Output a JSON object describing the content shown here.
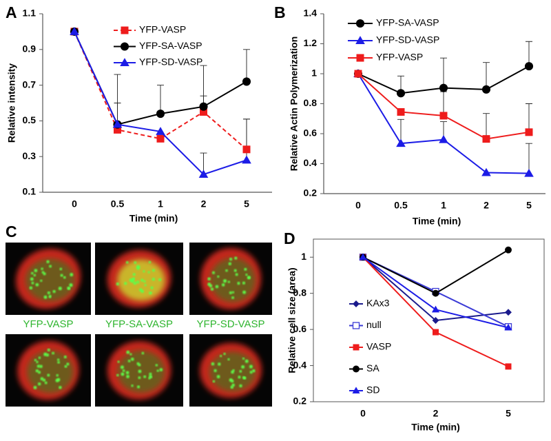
{
  "chart_data": [
    {
      "type": "line",
      "panel": "A",
      "xlabel": "Time (min)",
      "ylabel": "Relative intensity",
      "categories": [
        "0",
        "0.5",
        "1",
        "2",
        "5"
      ],
      "ylim": [
        0.1,
        1.1
      ],
      "yticks": [
        0.1,
        0.3,
        0.5,
        0.7,
        0.9,
        1.1
      ],
      "legend": "upper-center",
      "frame": false,
      "series": [
        {
          "name": "YFP-VASP",
          "color": "#ee1c1c",
          "marker": "square",
          "dashed": true,
          "values": [
            1.0,
            0.45,
            0.4,
            0.55,
            0.34
          ],
          "errors": [
            null,
            null,
            null,
            0.09,
            0.17
          ]
        },
        {
          "name": "YFP-SA-VASP",
          "color": "#000000",
          "marker": "circle",
          "dashed": false,
          "values": [
            1.0,
            0.48,
            0.54,
            0.58,
            0.72
          ],
          "errors": [
            null,
            0.28,
            0.16,
            0.23,
            0.18
          ]
        },
        {
          "name": "YFP-SD-VASP",
          "color": "#1c1ce6",
          "marker": "triangle",
          "dashed": false,
          "values": [
            1.0,
            0.48,
            0.44,
            0.2,
            0.28
          ],
          "errors": [
            null,
            0.12,
            null,
            0.12,
            0.23
          ]
        }
      ]
    },
    {
      "type": "line",
      "panel": "B",
      "xlabel": "Time (min)",
      "ylabel": "Relative Actin Polymerization",
      "categories": [
        "0",
        "0.5",
        "1",
        "2",
        "5"
      ],
      "ylim": [
        0.2,
        1.4
      ],
      "yticks": [
        0.2,
        0.4,
        0.6,
        0.8,
        1,
        1.2,
        1.4
      ],
      "legend": "upper-left",
      "frame": false,
      "series": [
        {
          "name": "YFP-SA-VASP",
          "color": "#000000",
          "marker": "circle",
          "dashed": false,
          "values": [
            1.0,
            0.87,
            0.905,
            0.895,
            1.05
          ],
          "errors": [
            null,
            0.115,
            0.2,
            0.18,
            0.165
          ]
        },
        {
          "name": "YFP-SD-VASP",
          "color": "#1c1ce6",
          "marker": "triangle",
          "dashed": false,
          "values": [
            1.0,
            0.535,
            0.56,
            0.34,
            0.335
          ],
          "errors": [
            null,
            0.16,
            0.12,
            null,
            0.2
          ]
        },
        {
          "name": "YFP-VASP",
          "color": "#ee1c1c",
          "marker": "square",
          "dashed": false,
          "values": [
            1.0,
            0.745,
            0.72,
            0.565,
            0.61
          ],
          "errors": [
            null,
            null,
            0.16,
            0.17,
            0.19
          ]
        }
      ]
    },
    {
      "type": "line",
      "panel": "D",
      "xlabel": "Time (min)",
      "ylabel": "Relative cell size (area)",
      "categories": [
        "0",
        "2",
        "5"
      ],
      "ylim": [
        0.2,
        1.1
      ],
      "yticks": [
        0.2,
        0.4,
        0.6,
        0.8,
        1
      ],
      "legend": "center-left",
      "frame": true,
      "series": [
        {
          "name": "KAx3",
          "color": "#1a1a8c",
          "marker": "diamond",
          "dashed": false,
          "values": [
            1.0,
            0.65,
            0.695
          ]
        },
        {
          "name": "null",
          "color": "#3b3bd6",
          "marker": "open-square",
          "dashed": false,
          "values": [
            1.0,
            0.81,
            0.615
          ]
        },
        {
          "name": "VASP",
          "color": "#ee1c1c",
          "marker": "square",
          "dashed": false,
          "values": [
            1.0,
            0.585,
            0.395
          ]
        },
        {
          "name": "SA",
          "color": "#000000",
          "marker": "circle",
          "dashed": false,
          "values": [
            1.0,
            0.8,
            1.04
          ]
        },
        {
          "name": "SD",
          "color": "#1c1ce6",
          "marker": "triangle",
          "dashed": false,
          "values": [
            1.0,
            0.71,
            0.61
          ]
        }
      ]
    }
  ],
  "micrographs": {
    "panel": "C",
    "labels": [
      "YFP-VASP",
      "YFP-SA-VASP",
      "YFP-SD-VASP"
    ]
  }
}
